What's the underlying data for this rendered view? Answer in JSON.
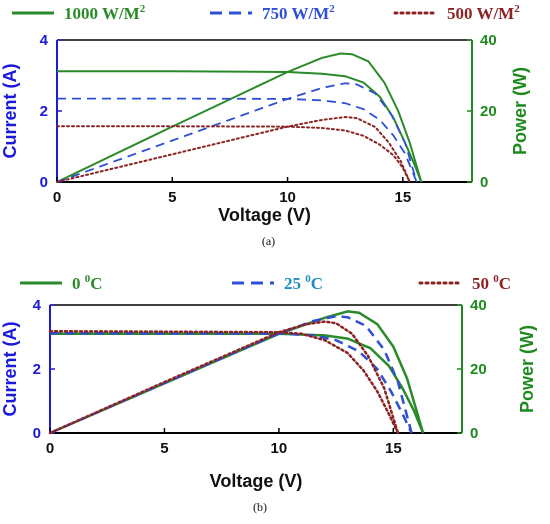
{
  "chart_data": [
    {
      "id": "a",
      "type": "line",
      "subfigure_label": "(a)",
      "xlabel": "Voltage (V)",
      "ylabel_left": "Current (A)",
      "ylabel_right": "Power (W)",
      "xlim": [
        0,
        18
      ],
      "ylim_left": [
        0,
        4
      ],
      "ylim_right": [
        0,
        40
      ],
      "x_ticks": [
        0,
        5,
        10,
        15
      ],
      "y_ticks_left": [
        0,
        2,
        4
      ],
      "y_ticks_right": [
        0,
        20,
        40
      ],
      "legend": [
        {
          "label": "1000 W/M",
          "sup": "2",
          "style": "solid",
          "color": "#2a8a2a",
          "text_color": "#2a8a2a"
        },
        {
          "label": "750 W/M",
          "sup": "2",
          "style": "dashed",
          "color": "#2d4fd6",
          "text_color": "#2d4fd6"
        },
        {
          "label": "500 W/M",
          "sup": "2",
          "style": "dotted",
          "color": "#8b2323",
          "text_color": "#8b2323"
        }
      ],
      "series": [
        {
          "name": "1000 W/M2",
          "quantity": "current",
          "axis": "left",
          "style": "solid",
          "color": "#2a8a2a",
          "points": [
            [
              0,
              3.12
            ],
            [
              5,
              3.12
            ],
            [
              10,
              3.1
            ],
            [
              11.5,
              3.05
            ],
            [
              12.5,
              2.98
            ],
            [
              13.3,
              2.8
            ],
            [
              14,
              2.4
            ],
            [
              14.6,
              1.8
            ],
            [
              15.1,
              1.1
            ],
            [
              15.5,
              0.5
            ],
            [
              15.8,
              0
            ]
          ]
        },
        {
          "name": "1000 W/M2",
          "quantity": "power",
          "axis": "right",
          "style": "solid",
          "color": "#2a8a2a",
          "points": [
            [
              0,
              0
            ],
            [
              5,
              15.6
            ],
            [
              10,
              31
            ],
            [
              11.5,
              35
            ],
            [
              12.3,
              36.2
            ],
            [
              12.8,
              36
            ],
            [
              13.5,
              34
            ],
            [
              14.2,
              28
            ],
            [
              14.8,
              20
            ],
            [
              15.3,
              11
            ],
            [
              15.8,
              0
            ]
          ]
        },
        {
          "name": "750 W/M2",
          "quantity": "current",
          "axis": "left",
          "style": "dashed",
          "color": "#2d4fd6",
          "points": [
            [
              0,
              2.35
            ],
            [
              5,
              2.35
            ],
            [
              10,
              2.34
            ],
            [
              11.5,
              2.3
            ],
            [
              12.5,
              2.22
            ],
            [
              13.3,
              2.05
            ],
            [
              14,
              1.75
            ],
            [
              14.6,
              1.3
            ],
            [
              15.1,
              0.8
            ],
            [
              15.6,
              0
            ]
          ]
        },
        {
          "name": "750 W/M2",
          "quantity": "power",
          "axis": "right",
          "style": "dashed",
          "color": "#2d4fd6",
          "points": [
            [
              0,
              0
            ],
            [
              5,
              11.7
            ],
            [
              10,
              23.4
            ],
            [
              11.5,
              26.5
            ],
            [
              12.5,
              27.8
            ],
            [
              13,
              27.5
            ],
            [
              13.8,
              25
            ],
            [
              14.5,
              19
            ],
            [
              15.1,
              11
            ],
            [
              15.6,
              0
            ]
          ]
        },
        {
          "name": "500 W/M2",
          "quantity": "current",
          "axis": "left",
          "style": "dotted",
          "color": "#8b2323",
          "points": [
            [
              0,
              1.57
            ],
            [
              5,
              1.57
            ],
            [
              10,
              1.56
            ],
            [
              11.5,
              1.52
            ],
            [
              12.5,
              1.45
            ],
            [
              13.3,
              1.3
            ],
            [
              14,
              1.05
            ],
            [
              14.6,
              0.75
            ],
            [
              15,
              0.4
            ],
            [
              15.3,
              0
            ]
          ]
        },
        {
          "name": "500 W/M2",
          "quantity": "power",
          "axis": "right",
          "style": "dotted",
          "color": "#8b2323",
          "points": [
            [
              0,
              0
            ],
            [
              5,
              7.8
            ],
            [
              10,
              15.6
            ],
            [
              11.5,
              17.5
            ],
            [
              12.5,
              18.3
            ],
            [
              13,
              18
            ],
            [
              13.8,
              15.5
            ],
            [
              14.4,
              11
            ],
            [
              14.9,
              6
            ],
            [
              15.3,
              0
            ]
          ]
        }
      ]
    },
    {
      "id": "b",
      "type": "line",
      "subfigure_label": "(b)",
      "xlabel": "Voltage (V)",
      "ylabel_left": "Current (A)",
      "ylabel_right": "Power (W)",
      "xlim": [
        0,
        18
      ],
      "ylim_left": [
        0,
        4
      ],
      "ylim_right": [
        0,
        40
      ],
      "x_ticks": [
        0,
        5,
        10,
        15
      ],
      "y_ticks_left": [
        0,
        2,
        4
      ],
      "y_ticks_right": [
        0,
        20,
        40
      ],
      "legend": [
        {
          "label": "0 ",
          "sup": "0",
          "after": "C",
          "style": "solid",
          "color": "#2a8a2a",
          "text_color": "#2a8a2a"
        },
        {
          "label": "25 ",
          "sup": "0",
          "after": "C",
          "style": "dashed",
          "color": "#2d4fd6",
          "text_color": "#1f8fbf"
        },
        {
          "label": "50 ",
          "sup": "0",
          "after": "C",
          "style": "dotted",
          "color": "#8b2323",
          "text_color": "#8b2323"
        }
      ],
      "series": [
        {
          "name": "0 0C",
          "quantity": "current",
          "axis": "left",
          "style": "solid",
          "color": "#2a8a2a",
          "points": [
            [
              0,
              3.1
            ],
            [
              10,
              3.1
            ],
            [
              12,
              3.05
            ],
            [
              13,
              2.95
            ],
            [
              14,
              2.65
            ],
            [
              14.8,
              2.1
            ],
            [
              15.4,
              1.4
            ],
            [
              15.9,
              0.7
            ],
            [
              16.3,
              0
            ]
          ]
        },
        {
          "name": "0 0C",
          "quantity": "power",
          "axis": "right",
          "style": "solid",
          "color": "#2a8a2a",
          "points": [
            [
              0,
              0
            ],
            [
              5,
              15.5
            ],
            [
              10,
              31
            ],
            [
              12,
              36
            ],
            [
              13,
              38
            ],
            [
              13.5,
              37.6
            ],
            [
              14.3,
              34
            ],
            [
              15,
              27
            ],
            [
              15.6,
              17
            ],
            [
              16.3,
              0
            ]
          ]
        },
        {
          "name": "25 0C",
          "quantity": "current",
          "axis": "left",
          "style": "dashed",
          "color": "#2d4fd6",
          "points": [
            [
              0,
              3.12
            ],
            [
              10,
              3.11
            ],
            [
              11.5,
              3.05
            ],
            [
              12.5,
              2.9
            ],
            [
              13.5,
              2.55
            ],
            [
              14.3,
              2
            ],
            [
              14.9,
              1.3
            ],
            [
              15.4,
              0.6
            ],
            [
              15.8,
              0
            ]
          ]
        },
        {
          "name": "25 0C",
          "quantity": "power",
          "axis": "right",
          "style": "dashed",
          "color": "#2d4fd6",
          "points": [
            [
              0,
              0
            ],
            [
              5,
              15.6
            ],
            [
              10,
              31.1
            ],
            [
              11.5,
              35
            ],
            [
              12.5,
              36.5
            ],
            [
              13,
              36.2
            ],
            [
              13.8,
              33.5
            ],
            [
              14.6,
              26
            ],
            [
              15.2,
              16
            ],
            [
              15.8,
              0
            ]
          ]
        },
        {
          "name": "50 0C",
          "quantity": "current",
          "axis": "left",
          "style": "dotted",
          "color": "#8b2323",
          "points": [
            [
              0,
              3.18
            ],
            [
              10,
              3.15
            ],
            [
              11,
              3.1
            ],
            [
              12,
              2.9
            ],
            [
              13,
              2.5
            ],
            [
              13.7,
              1.95
            ],
            [
              14.3,
              1.3
            ],
            [
              14.8,
              0.6
            ],
            [
              15.2,
              0
            ]
          ]
        },
        {
          "name": "50 0C",
          "quantity": "power",
          "axis": "right",
          "style": "dotted",
          "color": "#8b2323",
          "points": [
            [
              0,
              0
            ],
            [
              5,
              15.9
            ],
            [
              10,
              31.5
            ],
            [
              11.2,
              34
            ],
            [
              12,
              34.8
            ],
            [
              12.5,
              34.3
            ],
            [
              13.2,
              31
            ],
            [
              13.9,
              24
            ],
            [
              14.6,
              14
            ],
            [
              15.2,
              0
            ]
          ]
        }
      ]
    }
  ]
}
